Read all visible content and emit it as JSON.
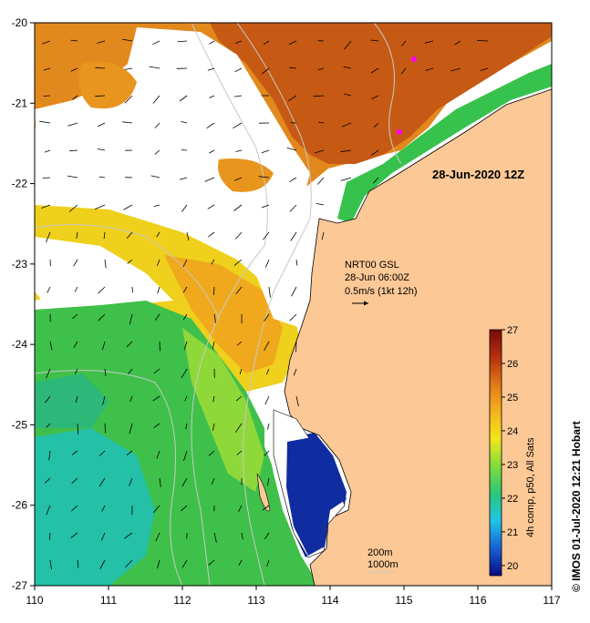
{
  "map": {
    "lon_range": [
      110,
      117
    ],
    "lat_range": [
      -27,
      -20
    ],
    "x_ticks": [
      "110",
      "111",
      "112",
      "113",
      "114",
      "115",
      "116",
      "117"
    ],
    "y_ticks": [
      "-20",
      "-21",
      "-22",
      "-23",
      "-24",
      "-25",
      "-26",
      "-27"
    ],
    "land_color": "#fcc896",
    "background_color": "#ffffff"
  },
  "labels": {
    "date": "28-Jun-2020 12Z",
    "current_source": "NRT00 GSL",
    "current_time": "28-Jun 06:00Z",
    "current_scale": "0.5m/s (1kt 12h)",
    "isobath_200": "200m",
    "isobath_1000": "1000m",
    "colorbar_caption": "4h comp, p50, All Sats",
    "credit": "© IMOS 01-Jul-2020 12:21 Hobart"
  },
  "colorbar": {
    "ticks": [
      "27",
      "26",
      "25",
      "24",
      "23",
      "22",
      "21",
      "20"
    ],
    "range": [
      19.7,
      27
    ],
    "colors": [
      "#0b0b80",
      "#1760d6",
      "#20c4e8",
      "#2bc77a",
      "#7edc3c",
      "#f2e61c",
      "#f5b21c",
      "#e0791a",
      "#b4300f",
      "#7a0a0a"
    ]
  }
}
